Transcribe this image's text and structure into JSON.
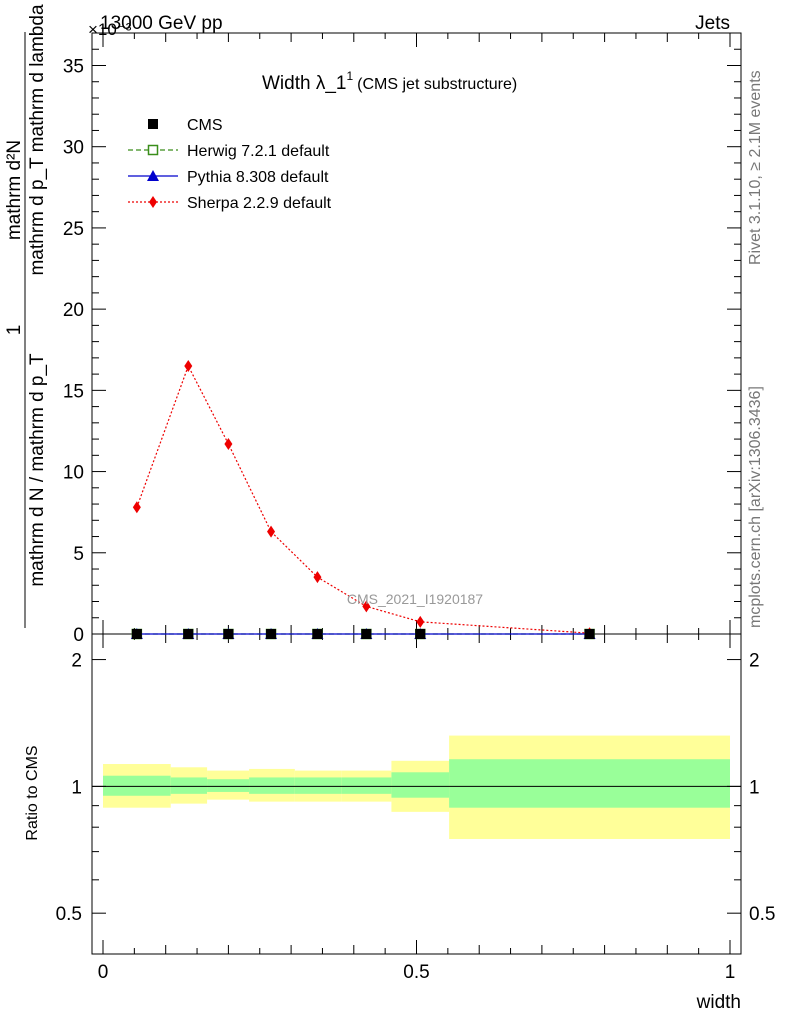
{
  "header": {
    "left": "13000 GeV pp",
    "right": "Jets",
    "exponent": "×10⁻³"
  },
  "side_labels": {
    "rivet": "Rivet 3.1.10, ≥ 2.1M events",
    "mcplots": "mcplots.cern.ch [arXiv:1306.3436]"
  },
  "watermark": "CMS_2021_I1920187",
  "plot_title": {
    "main": "Width λ_1",
    "sup": "1",
    "sub": "(CMS jet substructure)"
  },
  "ylabel_top": {
    "numer": "mathrm d²N",
    "denom": "mathrm d p_T mathrm d lambda",
    "prefix_numer": "1",
    "prefix_denom": "mathrm d N / mathrm d p_T"
  },
  "ylabel_ratio": "Ratio to CMS",
  "xlabel": "width",
  "legend": [
    {
      "name": "CMS",
      "color": "#000000",
      "marker": "square"
    },
    {
      "name": "Herwig 7.2.1 default",
      "color": "#3a8e1a",
      "marker": "open-square"
    },
    {
      "name": "Pythia 8.308 default",
      "color": "#0000cc",
      "marker": "triangle"
    },
    {
      "name": "Sherpa 2.2.9 default",
      "color": "#ee0000",
      "marker": "diamond"
    }
  ],
  "chart_data": {
    "type": "line",
    "x_ticks": [
      "0",
      "0.5",
      "1"
    ],
    "y_ticks": [
      "0",
      "5",
      "10",
      "15",
      "20",
      "25",
      "30",
      "35"
    ],
    "ratio_ticks": [
      "0.5",
      "1",
      "2"
    ],
    "xlim": [
      0,
      1
    ],
    "ylim": [
      0,
      37
    ],
    "ratio_ylim": [
      0.4,
      2.3
    ],
    "log_ratio_axis": true,
    "series": [
      {
        "name": "CMS",
        "x": [
          0.054,
          0.136,
          0.2,
          0.268,
          0.342,
          0.42,
          0.506,
          0.776
        ],
        "y": [
          0,
          0,
          0,
          0,
          0,
          0,
          0,
          0
        ]
      },
      {
        "name": "Herwig 7.2.1 default",
        "x": [
          0.054,
          0.136,
          0.2,
          0.268,
          0.342,
          0.42,
          0.506,
          0.776
        ],
        "y": [
          0,
          0,
          0,
          0,
          0,
          0,
          0,
          0
        ]
      },
      {
        "name": "Pythia 8.308 default",
        "x": [
          0.054,
          0.136,
          0.2,
          0.268,
          0.342,
          0.42,
          0.506,
          0.776
        ],
        "y": [
          0,
          0,
          0,
          0,
          0,
          0,
          0,
          0
        ]
      },
      {
        "name": "Sherpa 2.2.9 default",
        "x": [
          0.054,
          0.136,
          0.2,
          0.268,
          0.342,
          0.42,
          0.506,
          0.776
        ],
        "y": [
          7.8,
          16.5,
          11.7,
          6.3,
          3.5,
          1.7,
          0.75,
          0.05
        ]
      }
    ],
    "ratio_bands": [
      {
        "x0": 0.0,
        "x1": 0.108,
        "inner": [
          0.95,
          1.06
        ],
        "outer": [
          0.89,
          1.13
        ]
      },
      {
        "x0": 0.108,
        "x1": 0.166,
        "inner": [
          0.96,
          1.05
        ],
        "outer": [
          0.91,
          1.11
        ]
      },
      {
        "x0": 0.166,
        "x1": 0.233,
        "inner": [
          0.97,
          1.04
        ],
        "outer": [
          0.93,
          1.09
        ]
      },
      {
        "x0": 0.233,
        "x1": 0.306,
        "inner": [
          0.96,
          1.05
        ],
        "outer": [
          0.92,
          1.1
        ]
      },
      {
        "x0": 0.306,
        "x1": 0.38,
        "inner": [
          0.96,
          1.05
        ],
        "outer": [
          0.92,
          1.09
        ]
      },
      {
        "x0": 0.38,
        "x1": 0.46,
        "inner": [
          0.96,
          1.05
        ],
        "outer": [
          0.92,
          1.09
        ]
      },
      {
        "x0": 0.46,
        "x1": 0.552,
        "inner": [
          0.94,
          1.08
        ],
        "outer": [
          0.87,
          1.15
        ]
      },
      {
        "x0": 0.552,
        "x1": 1.0,
        "inner": [
          0.89,
          1.16
        ],
        "outer": [
          0.75,
          1.32
        ]
      }
    ],
    "colors": {
      "inner_band": "#99ff99",
      "outer_band": "#ffff99"
    }
  }
}
